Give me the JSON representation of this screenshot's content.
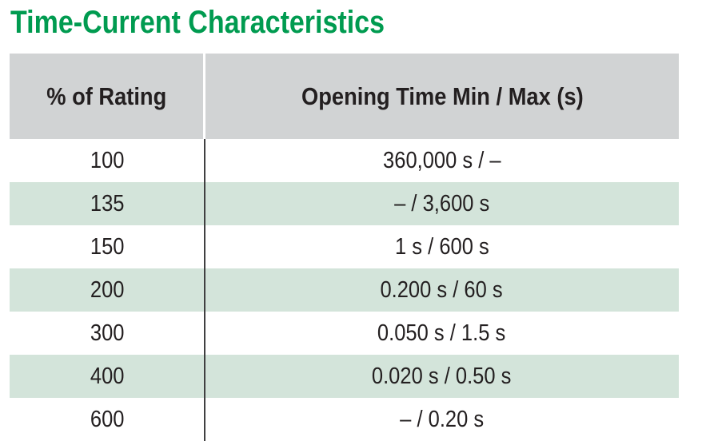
{
  "title": "Time-Current Characteristics",
  "table": {
    "columns": {
      "rating_header": "% of Rating",
      "time_header": "Opening Time Min / Max (s)"
    },
    "rows": [
      {
        "rating": "100",
        "time": "360,000 s / –"
      },
      {
        "rating": "135",
        "time": "– / 3,600 s"
      },
      {
        "rating": "150",
        "time": "1 s / 600 s"
      },
      {
        "rating": "200",
        "time": "0.200 s / 60 s"
      },
      {
        "rating": "300",
        "time": "0.050 s / 1.5 s"
      },
      {
        "rating": "400",
        "time": "0.020 s / 0.50 s"
      },
      {
        "rating": "600",
        "time": "– / 0.20 s"
      }
    ]
  },
  "colors": {
    "title_green": "#009B50",
    "header_background": "#d1d3d4",
    "alt_row_background": "#d3e4da",
    "text": "#231f20",
    "column_divider": "#404041"
  }
}
